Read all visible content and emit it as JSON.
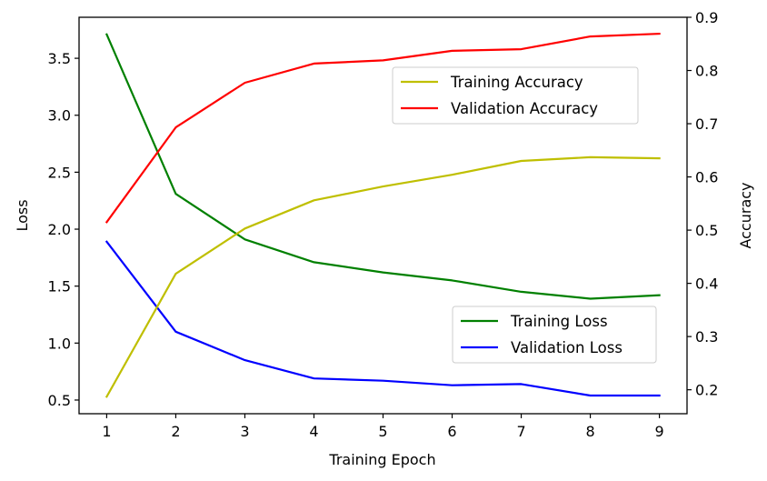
{
  "chart_data": {
    "type": "line",
    "x": [
      1,
      2,
      3,
      4,
      5,
      6,
      7,
      8,
      9
    ],
    "xlabel": "Training Epoch",
    "xlim": [
      0.6,
      9.4
    ],
    "x_ticks": [
      1,
      2,
      3,
      4,
      5,
      6,
      7,
      8,
      9
    ],
    "left_axis": {
      "label": "Loss",
      "ylim": [
        0.38,
        3.86
      ],
      "ticks": [
        0.5,
        1.0,
        1.5,
        2.0,
        2.5,
        3.0,
        3.5
      ],
      "tick_labels": [
        "0.5",
        "1.0",
        "1.5",
        "2.0",
        "2.5",
        "3.0",
        "3.5"
      ]
    },
    "right_axis": {
      "label": "Accuracy",
      "ylim": [
        0.155,
        0.9
      ],
      "ticks": [
        0.2,
        0.3,
        0.4,
        0.5,
        0.6,
        0.7,
        0.8,
        0.9
      ],
      "tick_labels": [
        "0.2",
        "0.3",
        "0.4",
        "0.5",
        "0.6",
        "0.7",
        "0.8",
        "0.9"
      ]
    },
    "series": [
      {
        "name": "Training Loss",
        "axis": "left",
        "color": "#008000",
        "values": [
          3.71,
          2.31,
          1.91,
          1.71,
          1.62,
          1.55,
          1.45,
          1.39,
          1.42
        ]
      },
      {
        "name": "Validation Loss",
        "axis": "left",
        "color": "#0000ff",
        "values": [
          1.89,
          1.1,
          0.85,
          0.69,
          0.67,
          0.63,
          0.64,
          0.54,
          0.54
        ]
      },
      {
        "name": "Training Accuracy",
        "axis": "right",
        "color": "#bfbf00",
        "values": [
          0.187,
          0.418,
          0.503,
          0.556,
          0.582,
          0.604,
          0.63,
          0.637,
          0.635
        ]
      },
      {
        "name": "Validation Accuracy",
        "axis": "right",
        "color": "#ff0000",
        "values": [
          0.515,
          0.693,
          0.777,
          0.813,
          0.819,
          0.837,
          0.84,
          0.864,
          0.869
        ]
      }
    ],
    "legends": [
      {
        "position": "upper-right",
        "entries": [
          "Training Accuracy",
          "Validation Accuracy"
        ]
      },
      {
        "position": "lower-right",
        "entries": [
          "Training Loss",
          "Validation Loss"
        ]
      }
    ],
    "grid": false
  }
}
